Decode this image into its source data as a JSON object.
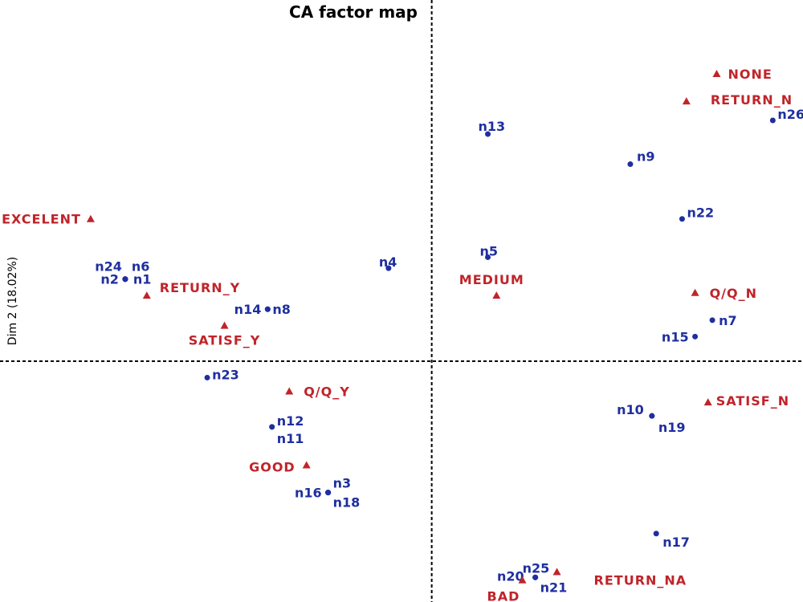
{
  "chart_data": {
    "type": "scatter",
    "title": "CA factor map",
    "xlabel": "",
    "ylabel": "Dim 2 (18.02%)",
    "xlim": [
      -1.0,
      0.86
    ],
    "ylim": [
      -0.88,
      1.32
    ],
    "grid": false,
    "colors": {
      "rows": "#1f2f9f",
      "columns": "#c0242a"
    },
    "series": [
      {
        "name": "rows",
        "marker": "dot",
        "points": [
          {
            "label": "n1",
            "x": -0.71,
            "y": 0.3
          },
          {
            "label": "n2",
            "x": -0.71,
            "y": 0.3
          },
          {
            "label": "n3",
            "x": -0.24,
            "y": -0.48
          },
          {
            "label": "n4",
            "x": -0.1,
            "y": 0.34
          },
          {
            "label": "n5",
            "x": 0.13,
            "y": 0.38
          },
          {
            "label": "n6",
            "x": -0.71,
            "y": 0.3
          },
          {
            "label": "n7",
            "x": 0.65,
            "y": 0.15
          },
          {
            "label": "n8",
            "x": -0.38,
            "y": 0.19
          },
          {
            "label": "n9",
            "x": 0.46,
            "y": 0.72
          },
          {
            "label": "n10",
            "x": 0.51,
            "y": -0.2
          },
          {
            "label": "n11",
            "x": -0.37,
            "y": -0.24
          },
          {
            "label": "n12",
            "x": -0.37,
            "y": -0.24
          },
          {
            "label": "n13",
            "x": 0.13,
            "y": 0.83
          },
          {
            "label": "n14",
            "x": -0.38,
            "y": 0.19
          },
          {
            "label": "n15",
            "x": 0.61,
            "y": 0.09
          },
          {
            "label": "n16",
            "x": -0.24,
            "y": -0.48
          },
          {
            "label": "n17",
            "x": 0.52,
            "y": -0.63
          },
          {
            "label": "n18",
            "x": -0.24,
            "y": -0.48
          },
          {
            "label": "n19",
            "x": 0.51,
            "y": -0.2
          },
          {
            "label": "n20",
            "x": 0.24,
            "y": -0.79
          },
          {
            "label": "n21",
            "x": 0.24,
            "y": -0.79
          },
          {
            "label": "n22",
            "x": 0.58,
            "y": 0.52
          },
          {
            "label": "n23",
            "x": -0.52,
            "y": -0.06
          },
          {
            "label": "n24",
            "x": -0.71,
            "y": 0.3
          },
          {
            "label": "n25",
            "x": 0.24,
            "y": -0.79
          },
          {
            "label": "n26",
            "x": 0.79,
            "y": 0.88
          }
        ]
      },
      {
        "name": "columns",
        "marker": "triangle",
        "points": [
          {
            "label": "EXCELENT",
            "x": -0.79,
            "y": 0.52
          },
          {
            "label": "RETURN_Y",
            "x": -0.66,
            "y": 0.24
          },
          {
            "label": "SATISF_Y",
            "x": -0.48,
            "y": 0.13
          },
          {
            "label": "MEDIUM",
            "x": 0.15,
            "y": 0.24
          },
          {
            "label": "NONE",
            "x": 0.66,
            "y": 1.05
          },
          {
            "label": "RETURN_N",
            "x": 0.59,
            "y": 0.95
          },
          {
            "label": "Q/Q_N",
            "x": 0.61,
            "y": 0.25
          },
          {
            "label": "Q/Q_Y",
            "x": -0.33,
            "y": -0.11
          },
          {
            "label": "SATISF_N",
            "x": 0.64,
            "y": -0.15
          },
          {
            "label": "GOOD",
            "x": -0.29,
            "y": -0.38
          },
          {
            "label": "RETURN_NA",
            "x": 0.29,
            "y": -0.77
          },
          {
            "label": "BAD",
            "x": 0.21,
            "y": -0.8
          }
        ]
      }
    ]
  }
}
